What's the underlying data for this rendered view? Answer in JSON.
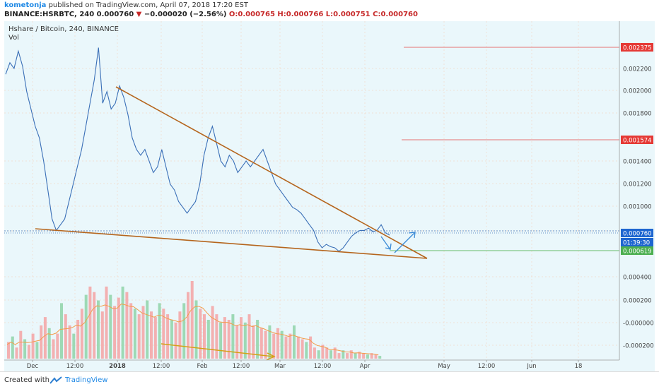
{
  "header": {
    "author": "kometonja",
    "published": " published on TradingView.com, April 07, 2018 17:20 EST",
    "symbol_line_prefix": "BINANCE:HSRBTC, 240  0.000760",
    "change_arrow": "▼",
    "change": " −0.000020 (−2.56%)",
    "ohlc": " O:0.000765  H:0.000766  L:0.000751  C:0.000760"
  },
  "chart_data": {
    "type": "line",
    "title": "Hshare / Bitcoin, 240, BINANCE",
    "subtitle": "Vol",
    "x_tick_labels": [
      "Dec",
      "12:00",
      "2018",
      "12:00",
      "Feb",
      "12:00",
      "Mar",
      "12:00",
      "Apr",
      "May",
      "12:00",
      "Jun",
      "18"
    ],
    "y_tick_labels": [
      "0.002375",
      "0.002200",
      "0.002000",
      "0.001800",
      "0.001574",
      "0.001400",
      "0.001200",
      "0.001000",
      "0.000800",
      "0.000760",
      "01:39:30",
      "0.000619",
      "0.000400",
      "0.000200",
      "-0.000000",
      "-0.000200"
    ],
    "ylim": [
      -0.00025,
      0.00255
    ],
    "series": [
      {
        "values": [
          0.00215,
          0.00225,
          0.0022,
          0.00235,
          0.00222,
          0.002,
          0.00185,
          0.0017,
          0.0016,
          0.0014,
          0.00115,
          0.0009,
          0.0008,
          0.00085,
          0.0009,
          0.00105,
          0.0012,
          0.00135,
          0.0015,
          0.0017,
          0.0019,
          0.0021,
          0.00238,
          0.0019,
          0.002,
          0.00185,
          0.0019,
          0.00205,
          0.00195,
          0.0018,
          0.0016,
          0.0015,
          0.00145,
          0.0015,
          0.0014,
          0.0013,
          0.00135,
          0.0015,
          0.00135,
          0.0012,
          0.00115,
          0.00105,
          0.001,
          0.00095,
          0.001,
          0.00105,
          0.0012,
          0.00145,
          0.0016,
          0.0017,
          0.00155,
          0.0014,
          0.00135,
          0.00145,
          0.0014,
          0.0013,
          0.00135,
          0.0014,
          0.00135,
          0.0014,
          0.00145,
          0.0015,
          0.0014,
          0.0013,
          0.0012,
          0.00115,
          0.0011,
          0.00105,
          0.001,
          0.00098,
          0.00095,
          0.0009,
          0.00085,
          0.0008,
          0.0007,
          0.00065,
          0.00068,
          0.00066,
          0.00065,
          0.00062,
          0.00065,
          0.0007,
          0.00075,
          0.00078,
          0.0008,
          0.0008,
          0.00082,
          0.00079,
          0.0008,
          0.00085,
          0.00078,
          0.00076
        ]
      }
    ],
    "volume": {
      "values": [
        60,
        80,
        40,
        100,
        70,
        50,
        90,
        60,
        120,
        150,
        110,
        70,
        90,
        200,
        160,
        120,
        90,
        140,
        180,
        230,
        260,
        240,
        210,
        170,
        260,
        230,
        190,
        220,
        260,
        240,
        200,
        180,
        160,
        190,
        210,
        170,
        150,
        200,
        180,
        160,
        140,
        130,
        170,
        200,
        240,
        280,
        210,
        180,
        160,
        140,
        190,
        160,
        130,
        150,
        140,
        160,
        120,
        150,
        130,
        160,
        120,
        140,
        110,
        100,
        120,
        90,
        110,
        100,
        80,
        90,
        120,
        80,
        70,
        60,
        80,
        40,
        30,
        50,
        40,
        30,
        40,
        20,
        30,
        20,
        30,
        20,
        25,
        20,
        15,
        20,
        15,
        10
      ]
    },
    "annotations": {
      "horizontal_levels": [
        "0.002375",
        "0.001574",
        "0.000619"
      ],
      "current_price": "0.000760",
      "countdown": "01:39:30"
    }
  },
  "footer": {
    "created_with": "Created with",
    "brand": "TradingView"
  }
}
